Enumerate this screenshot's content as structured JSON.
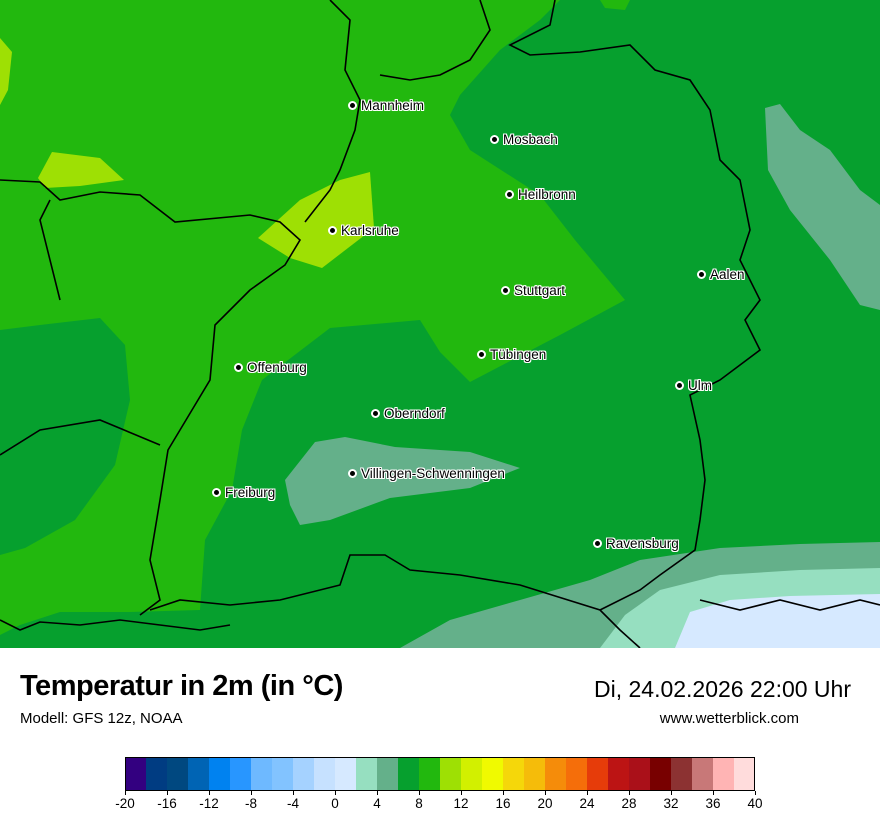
{
  "map": {
    "colors": {
      "c_4_6": "#64b08a",
      "c_2_4": "#96dfc0",
      "c_0_2": "#d6e9ff",
      "c_6_8": "#06a02e",
      "c_8_10": "#22b80e",
      "c_10_12": "#9ee004"
    },
    "cities": [
      {
        "name": "Mannheim"
      },
      {
        "name": "Mosbach"
      },
      {
        "name": "Heilbronn"
      },
      {
        "name": "Karlsruhe"
      },
      {
        "name": "Aalen"
      },
      {
        "name": "Stuttgart"
      },
      {
        "name": "Tübingen"
      },
      {
        "name": "Offenburg"
      },
      {
        "name": "Ulm"
      },
      {
        "name": "Oberndorf"
      },
      {
        "name": "Villingen-Schwenningen"
      },
      {
        "name": "Freiburg"
      },
      {
        "name": "Ravensburg"
      }
    ]
  },
  "header": {
    "title": "Temperatur in 2m (in °C)",
    "model": "Modell: GFS 12z, NOAA",
    "datetime": "Di, 24.02.2026 22:00 Uhr",
    "website": "www.wetterblick.com"
  },
  "legend": {
    "min": -20,
    "max": 40,
    "step": 2,
    "colors": [
      "#330080",
      "#003c82",
      "#004880",
      "#0064b4",
      "#0082f0",
      "#2896ff",
      "#6eb9ff",
      "#82c3ff",
      "#a5d2ff",
      "#c6e1ff",
      "#d6e9ff",
      "#96dfc0",
      "#64b08a",
      "#06a02e",
      "#22b80e",
      "#9ee004",
      "#d2f000",
      "#f0fa00",
      "#f5d70a",
      "#f5bc0a",
      "#f58c0a",
      "#f56e0a",
      "#e63c0a",
      "#bc1414",
      "#aa1019",
      "#780000",
      "#8c3232",
      "#c87878",
      "#ffb4b4",
      "#ffdcdc"
    ],
    "tick_labels": [
      "-20",
      "-16",
      "-12",
      "-8",
      "-4",
      "0",
      "4",
      "8",
      "12",
      "16",
      "20",
      "24",
      "28",
      "32",
      "36",
      "40"
    ]
  }
}
